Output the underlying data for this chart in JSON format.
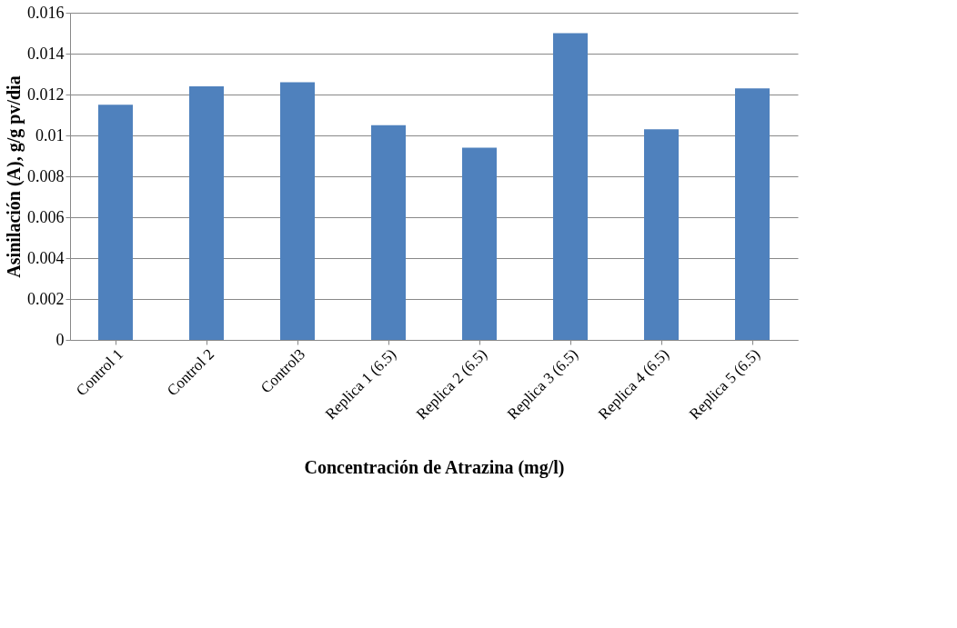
{
  "chart_data": {
    "type": "bar",
    "xlabel": "Concentración de Atrazina (mg/l)",
    "ylabel": "Asinilación (A), g/g pv/dia",
    "categories": [
      "Control 1",
      "Control 2",
      "Control3",
      "Replica 1    (6.5)",
      "Replica 2    (6.5)",
      "Replica 3    (6.5)",
      "Replica 4      (6.5)",
      "Replica 5      (6.5)"
    ],
    "values": [
      0.0115,
      0.0124,
      0.0126,
      0.0105,
      0.0094,
      0.015,
      0.0103,
      0.0123
    ],
    "color": "#4f81bd",
    "ylim": [
      0,
      0.016
    ],
    "yticks": [
      0,
      0.002,
      0.004,
      0.006,
      0.008,
      0.01,
      0.012,
      0.014,
      0.016
    ],
    "grid": "y"
  }
}
